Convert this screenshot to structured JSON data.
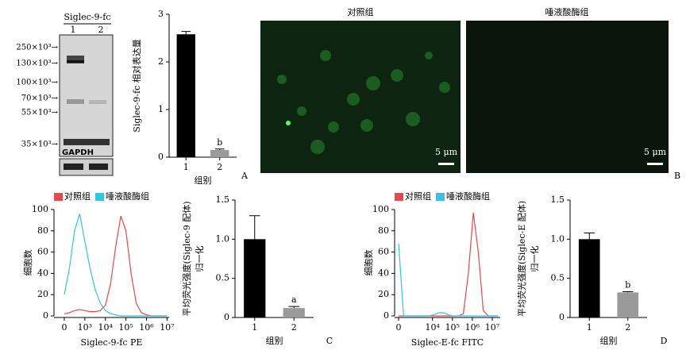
{
  "blot": {
    "header": "Siglec-9-fc",
    "lanes": [
      "1",
      "2"
    ],
    "markers": [
      "250×10³→",
      "130×10³→",
      "100×10³→",
      "70×10³→",
      "55×10³→",
      "35×10³→"
    ],
    "loading": "GAPDH"
  },
  "images": {
    "panel_label": "B",
    "items": [
      {
        "title": "对照组",
        "scale": "5 μm"
      },
      {
        "title": "唾液酸酶组",
        "scale": "5 μm"
      }
    ]
  },
  "chart_data": [
    {
      "type": "bar",
      "panel_label": "A",
      "categories": [
        "1",
        "2"
      ],
      "values": [
        2.58,
        0.15
      ],
      "errors": [
        0.06,
        0.02
      ],
      "annotations": [
        null,
        "b"
      ],
      "colors": [
        "#000000",
        "#9a9a9a"
      ],
      "xlabel": "组别",
      "ylabel": [
        "Siglec-9-fc 相对表达量"
      ],
      "ylim": [
        0,
        3
      ],
      "yticks": [
        0,
        1,
        2,
        3
      ]
    },
    {
      "type": "line",
      "x": [
        2,
        2.25,
        2.5,
        2.75,
        3,
        3.25,
        3.5,
        3.75,
        4,
        4.25,
        4.5,
        4.75,
        5,
        5.25,
        5.5,
        5.75,
        6,
        6.25,
        6.5,
        6.75,
        7
      ],
      "series": [
        {
          "name": "对照组",
          "color": "#e8474b",
          "values": [
            2,
            3,
            5,
            6,
            5,
            4,
            4,
            5,
            10,
            30,
            65,
            94,
            80,
            40,
            12,
            3,
            1,
            0,
            0,
            0,
            0
          ]
        },
        {
          "name": "唾液酸酶组",
          "color": "#35c4e3",
          "values": [
            20,
            45,
            80,
            96,
            70,
            45,
            25,
            12,
            5,
            2,
            1,
            0,
            0,
            0,
            0,
            0,
            0,
            0,
            0,
            0,
            0
          ]
        }
      ],
      "xlabel": "Siglec-9-fc PE",
      "ylabel": "细胞数",
      "xlim": [
        1.5,
        7.1
      ],
      "ylim": [
        0,
        100
      ],
      "xticks": [
        {
          "value": 2,
          "label": "0"
        },
        {
          "value": 3,
          "label": "10³"
        },
        {
          "value": 4,
          "label": "10⁴"
        },
        {
          "value": 5,
          "label": "10⁵"
        },
        {
          "value": 6,
          "label": "10⁶"
        },
        {
          "value": 7,
          "label": "10⁷"
        }
      ],
      "yticks": [
        0,
        20,
        40,
        60,
        80,
        100
      ]
    },
    {
      "type": "bar",
      "panel_label": "C",
      "categories": [
        "1",
        "2"
      ],
      "values": [
        1.0,
        0.12
      ],
      "errors": [
        0.3,
        0.02
      ],
      "annotations": [
        null,
        "a"
      ],
      "colors": [
        "#000000",
        "#9a9a9a"
      ],
      "xlabel": "组别",
      "ylabel": [
        "平均荧光强度(Siglec-9 配体)",
        "归一化"
      ],
      "ylim": [
        0,
        1.5
      ],
      "yticks": [
        0,
        0.5,
        {
          "value": 1,
          "label": "1.0"
        },
        1.5
      ]
    },
    {
      "type": "line",
      "x": [
        2.3,
        2.55,
        2.8,
        3.05,
        3.3,
        3.55,
        3.8,
        4.05,
        4.3,
        4.55,
        4.8,
        5.05,
        5.3,
        5.55,
        5.8,
        6.05,
        6.3,
        6.55,
        6.8,
        7.05,
        7.3
      ],
      "series": [
        {
          "name": "对照组",
          "color": "#e8474b",
          "values": [
            0,
            0,
            0,
            0,
            0,
            0,
            0,
            0,
            0,
            0,
            0,
            0,
            0,
            2,
            40,
            97,
            60,
            5,
            0,
            0,
            0
          ]
        },
        {
          "name": "唾液酸酶组",
          "color": "#35c4e3",
          "values": [
            68,
            0,
            0,
            0,
            0,
            0,
            0,
            1,
            3,
            3,
            1,
            0,
            0,
            0,
            0,
            0,
            0,
            0,
            0,
            0,
            0
          ]
        }
      ],
      "xlabel": "Siglec-E-fc FITC",
      "ylabel": "细胞数",
      "xlim": [
        2.1,
        7.4
      ],
      "ylim": [
        0,
        100
      ],
      "xticks": [
        {
          "value": 2.3,
          "label": "0"
        },
        {
          "value": 4,
          "label": "10⁴"
        },
        {
          "value": 5,
          "label": "10⁵"
        },
        {
          "value": 6,
          "label": "10⁶"
        },
        {
          "value": 7,
          "label": "10⁷"
        }
      ],
      "yticks": [
        0,
        20,
        40,
        60,
        80,
        100
      ]
    },
    {
      "type": "bar",
      "panel_label": "D",
      "categories": [
        "1",
        "2"
      ],
      "values": [
        1.0,
        0.32
      ],
      "errors": [
        0.08,
        0.01
      ],
      "annotations": [
        null,
        "b"
      ],
      "colors": [
        "#000000",
        "#9a9a9a"
      ],
      "xlabel": "组别",
      "ylabel": [
        "平均荧光强度(Siglec-E 配体)",
        "归一化"
      ],
      "ylim": [
        0,
        1.5
      ],
      "yticks": [
        0,
        0.5,
        {
          "value": 1,
          "label": "1.0"
        },
        1.5
      ]
    }
  ]
}
